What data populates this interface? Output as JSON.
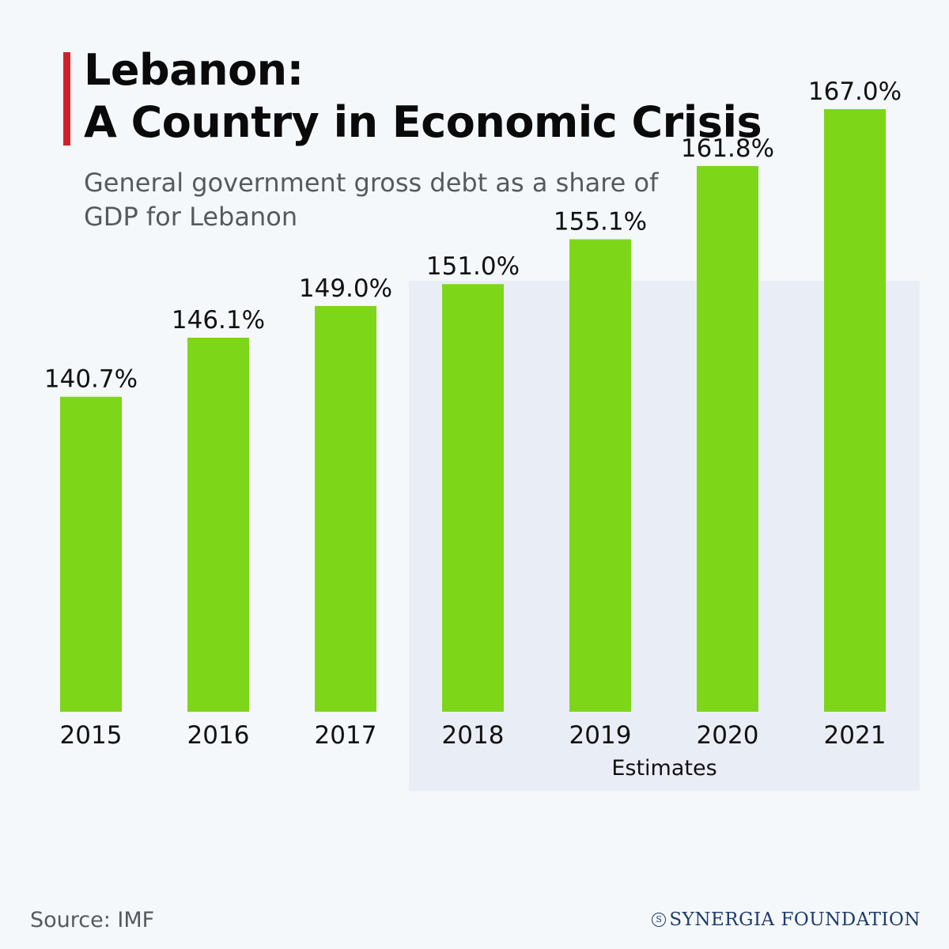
{
  "header": {
    "title_line1": "Lebanon:",
    "title_line2": "A Country in Economic Crisis",
    "subtitle": "General government gross debt as a share of GDP for Lebanon"
  },
  "chart_data": {
    "type": "bar",
    "categories": [
      "2015",
      "2016",
      "2017",
      "2018",
      "2019",
      "2020",
      "2021"
    ],
    "values": [
      140.7,
      146.1,
      149.0,
      151.0,
      155.1,
      161.8,
      167.0
    ],
    "value_labels": [
      "140.7%",
      "146.1%",
      "149.0%",
      "151.0%",
      "155.1%",
      "161.8%",
      "167.0%"
    ],
    "title": "Lebanon: A Country in Economic Crisis",
    "subtitle": "General government gross debt as a share of GDP for Lebanon",
    "unit": "%",
    "estimated_categories": [
      "2018",
      "2019",
      "2020",
      "2021"
    ],
    "estimates_label": "Estimates",
    "bar_color": "#7ed619",
    "highlight_color": "#e9eef6",
    "grid": false,
    "legend": "none"
  },
  "footer": {
    "source": "Source: IMF",
    "brand": "SYNERGIA FOUNDATION",
    "brand_mark": "S"
  },
  "colors": {
    "accent": "#d0222b",
    "background": "#f4f8fb",
    "brand": "#1e3a6b"
  }
}
